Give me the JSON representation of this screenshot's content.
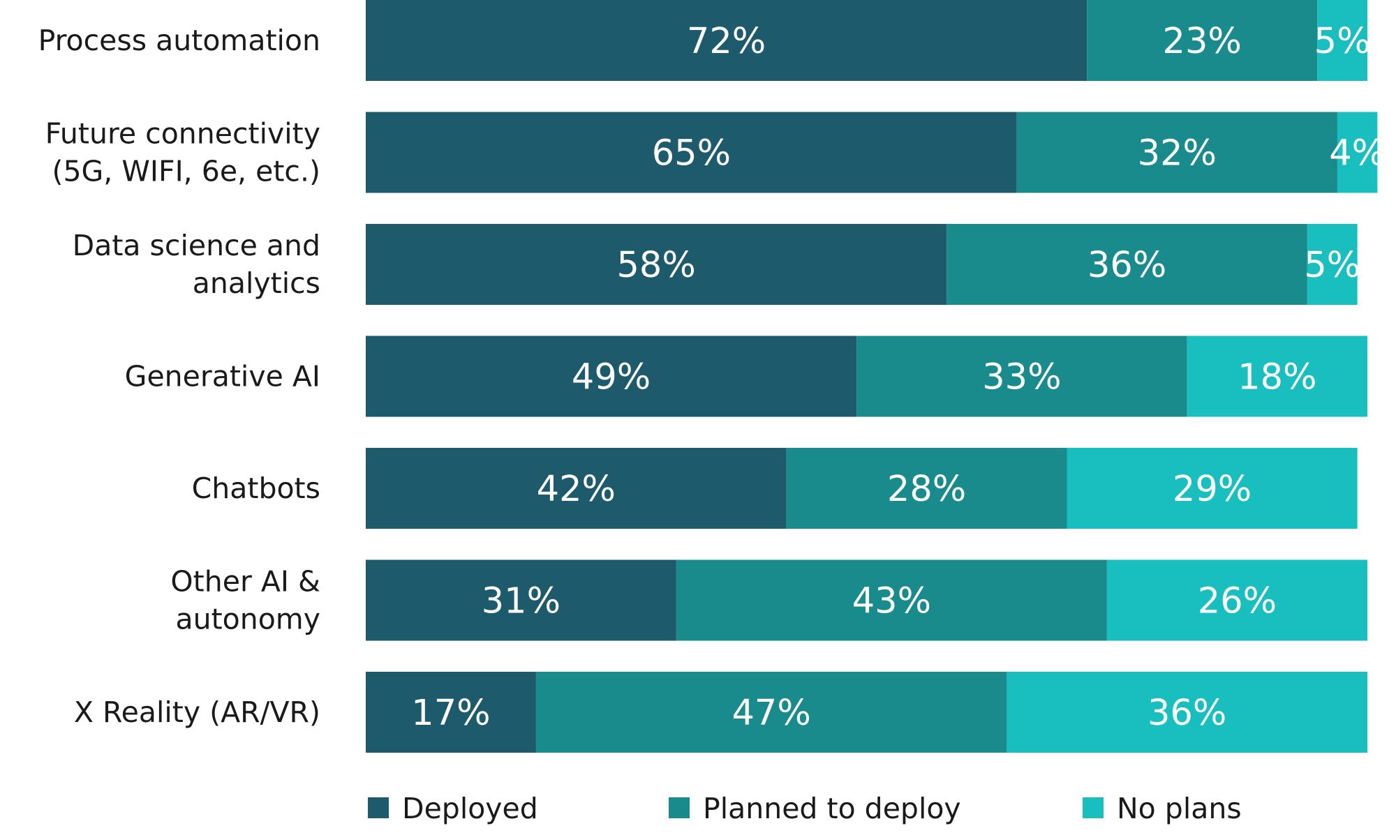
{
  "chart_data": {
    "type": "bar",
    "orientation": "horizontal",
    "stacked": true,
    "categories": [
      [
        "Process automation"
      ],
      [
        "Future connectivity",
        "(5G, WIFI, 6e, etc.)"
      ],
      [
        "Data science and",
        "analytics"
      ],
      [
        "Generative AI"
      ],
      [
        "Chatbots"
      ],
      [
        "Other AI &",
        "autonomy"
      ],
      [
        "X Reality (AR/VR)"
      ]
    ],
    "series": [
      {
        "name": "Deployed",
        "color": "#1c5a6c",
        "values": [
          72,
          65,
          58,
          49,
          42,
          31,
          17
        ]
      },
      {
        "name": "Planned to deploy",
        "color": "#198b8c",
        "values": [
          23,
          32,
          36,
          33,
          28,
          43,
          47
        ]
      },
      {
        "name": "No plans",
        "color": "#19bfbf",
        "values": [
          5,
          4,
          5,
          18,
          29,
          26,
          36
        ]
      }
    ],
    "value_suffix": "%",
    "xlim": [
      0,
      100
    ],
    "grid": false,
    "legend": "bottom"
  }
}
